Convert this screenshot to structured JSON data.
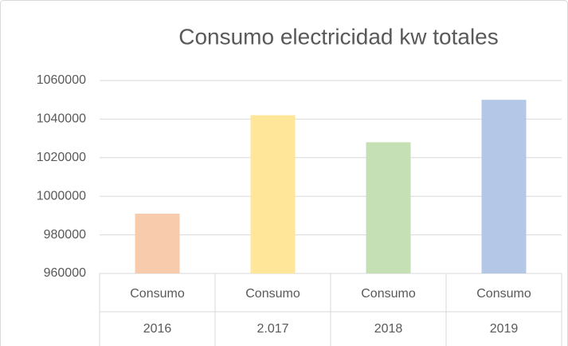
{
  "chart_data": {
    "type": "bar",
    "title": "Consumo electricidad kw totales",
    "categories": [
      [
        "Consumo",
        "2016"
      ],
      [
        "Consumo",
        "2.017"
      ],
      [
        "Consumo",
        "2018"
      ],
      [
        "Consumo",
        "2019"
      ]
    ],
    "values": [
      991000,
      1042000,
      1028000,
      1050000
    ],
    "colors": [
      "#f8cbad",
      "#ffe699",
      "#c5e0b4",
      "#b4c7e7"
    ],
    "ylim": [
      960000,
      1060000
    ],
    "yticks": [
      960000,
      980000,
      1000000,
      1020000,
      1040000,
      1060000
    ],
    "grid": true
  }
}
